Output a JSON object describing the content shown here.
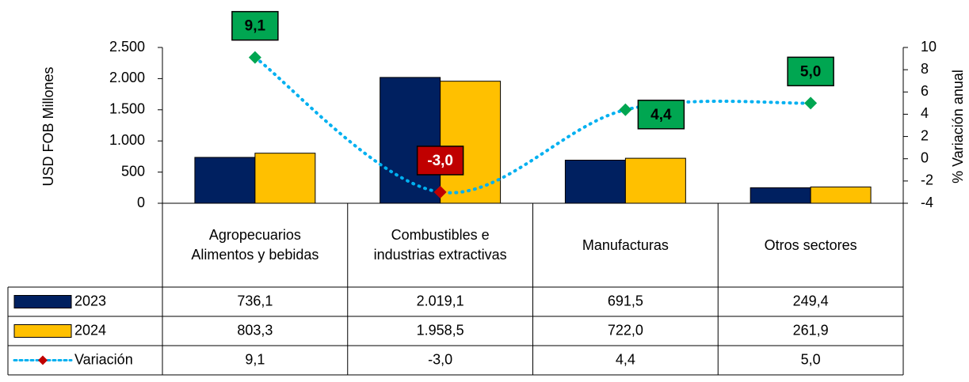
{
  "chart_data": {
    "type": "bar_line_table",
    "y_label": "USD FOB Millones",
    "y2_label": "% Variación anual",
    "categories": [
      "Agropecuarios Alimentos y bebidas",
      "Combustibles e industrias extractivas",
      "Manufacturas",
      "Otros sectores"
    ],
    "series": [
      {
        "name": "2023",
        "type": "bar",
        "color": "#002060",
        "values": [
          736.1,
          2019.1,
          691.5,
          249.4
        ],
        "value_labels": [
          "736,1",
          "2.019,1",
          "691,5",
          "249,4"
        ]
      },
      {
        "name": "2024",
        "type": "bar",
        "color": "#ffc000",
        "values": [
          803.3,
          1958.5,
          722.0,
          261.9
        ],
        "value_labels": [
          "803,3",
          "1.958,5",
          "722,0",
          "261,9"
        ]
      },
      {
        "name": "Variación",
        "type": "line",
        "axis": "y2",
        "color": "#00b0f0",
        "values": [
          9.1,
          -3.0,
          4.4,
          5.0
        ],
        "value_labels": [
          "9,1",
          "-3,0",
          "4,4",
          "5,0"
        ]
      }
    ],
    "positive_color": "#00a651",
    "negative_color": "#c00000",
    "ylim": [
      0,
      2500
    ],
    "yticks": [
      0,
      500,
      {
        "value": 1000,
        "label": "1.000"
      },
      {
        "value": 1500,
        "label": "1.500"
      },
      {
        "value": 2000,
        "label": "2.000"
      },
      {
        "value": 2500,
        "label": "2.500"
      }
    ],
    "y2lim": [
      -4,
      10
    ],
    "y2ticks": [
      -4,
      -2,
      0,
      2,
      4,
      6,
      8,
      10
    ]
  }
}
